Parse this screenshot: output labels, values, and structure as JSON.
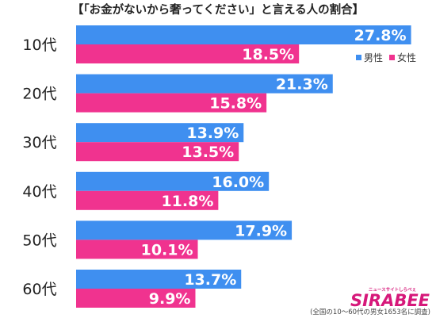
{
  "chart_data": {
    "type": "bar",
    "orientation": "horizontal",
    "title": "【「お金がないから奢ってください」と言える人の割合】",
    "categories": [
      "10代",
      "20代",
      "30代",
      "40代",
      "50代",
      "60代"
    ],
    "series": [
      {
        "name": "男性",
        "color": "#3f8ff0",
        "values": [
          27.8,
          21.3,
          13.9,
          16.0,
          17.9,
          13.7
        ],
        "labels": [
          "27.8%",
          "21.3%",
          "13.9%",
          "16.0%",
          "17.9%",
          "13.7%"
        ]
      },
      {
        "name": "女性",
        "color": "#f0338f",
        "values": [
          18.5,
          15.8,
          13.5,
          11.8,
          10.1,
          9.9
        ],
        "labels": [
          "18.5%",
          "15.8%",
          "13.5%",
          "11.8%",
          "10.1%",
          "9.9%"
        ]
      }
    ],
    "xlim": [
      0,
      30
    ],
    "legend_position": "top-right",
    "grid": false,
    "xlabel": "",
    "ylabel": ""
  },
  "footnote": "(全国の10～60代の男女1653名に調査)",
  "logo": {
    "main": "SIRABEE",
    "sub": "ニュースサイトしらべぇ"
  }
}
